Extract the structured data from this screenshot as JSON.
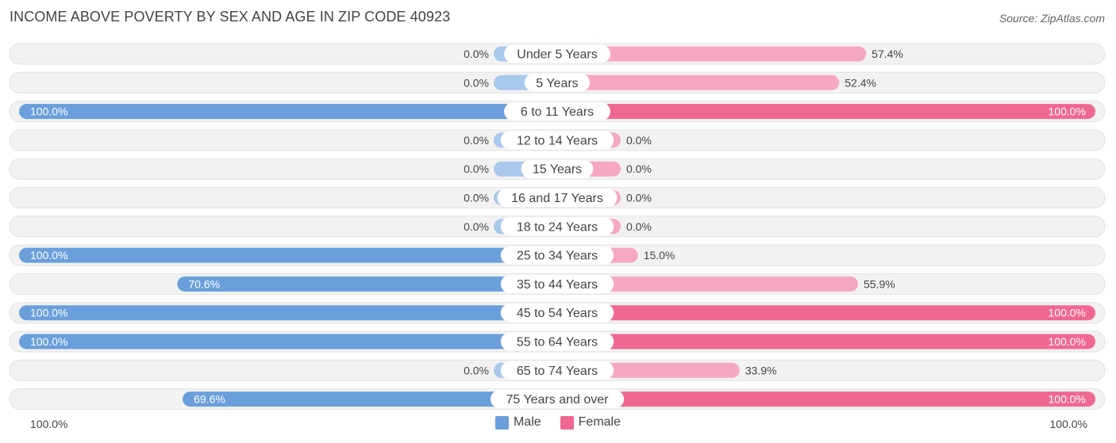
{
  "title": "INCOME ABOVE POVERTY BY SEX AND AGE IN ZIP CODE 40923",
  "source": "Source: ZipAtlas.com",
  "colors": {
    "male": "#6a9fdc",
    "male_light": "#a9c8ec",
    "female": "#f06892",
    "female_light": "#f7a8c1",
    "track": "#f2f2f2",
    "track_border": "#e2e2e2"
  },
  "legend": {
    "male": "Male",
    "female": "Female"
  },
  "axis": {
    "left": "100.0%",
    "right": "100.0%"
  },
  "chart_data": {
    "type": "bar",
    "orientation": "diverging-horizontal",
    "xlim": [
      0,
      100
    ],
    "categories": [
      "Under 5 Years",
      "5 Years",
      "6 to 11 Years",
      "12 to 14 Years",
      "15 Years",
      "16 and 17 Years",
      "18 to 24 Years",
      "25 to 34 Years",
      "35 to 44 Years",
      "45 to 54 Years",
      "55 to 64 Years",
      "65 to 74 Years",
      "75 Years and over"
    ],
    "series": [
      {
        "name": "Male",
        "values": [
          0.0,
          0.0,
          100.0,
          0.0,
          0.0,
          0.0,
          0.0,
          100.0,
          70.6,
          100.0,
          100.0,
          0.0,
          69.6
        ],
        "labels": [
          "0.0%",
          "0.0%",
          "100.0%",
          "0.0%",
          "0.0%",
          "0.0%",
          "0.0%",
          "100.0%",
          "70.6%",
          "100.0%",
          "100.0%",
          "0.0%",
          "69.6%"
        ]
      },
      {
        "name": "Female",
        "values": [
          57.4,
          52.4,
          100.0,
          0.0,
          0.0,
          0.0,
          0.0,
          15.0,
          55.9,
          100.0,
          100.0,
          33.9,
          100.0
        ],
        "labels": [
          "57.4%",
          "52.4%",
          "100.0%",
          "0.0%",
          "0.0%",
          "0.0%",
          "0.0%",
          "15.0%",
          "55.9%",
          "100.0%",
          "100.0%",
          "33.9%",
          "100.0%"
        ]
      }
    ]
  }
}
